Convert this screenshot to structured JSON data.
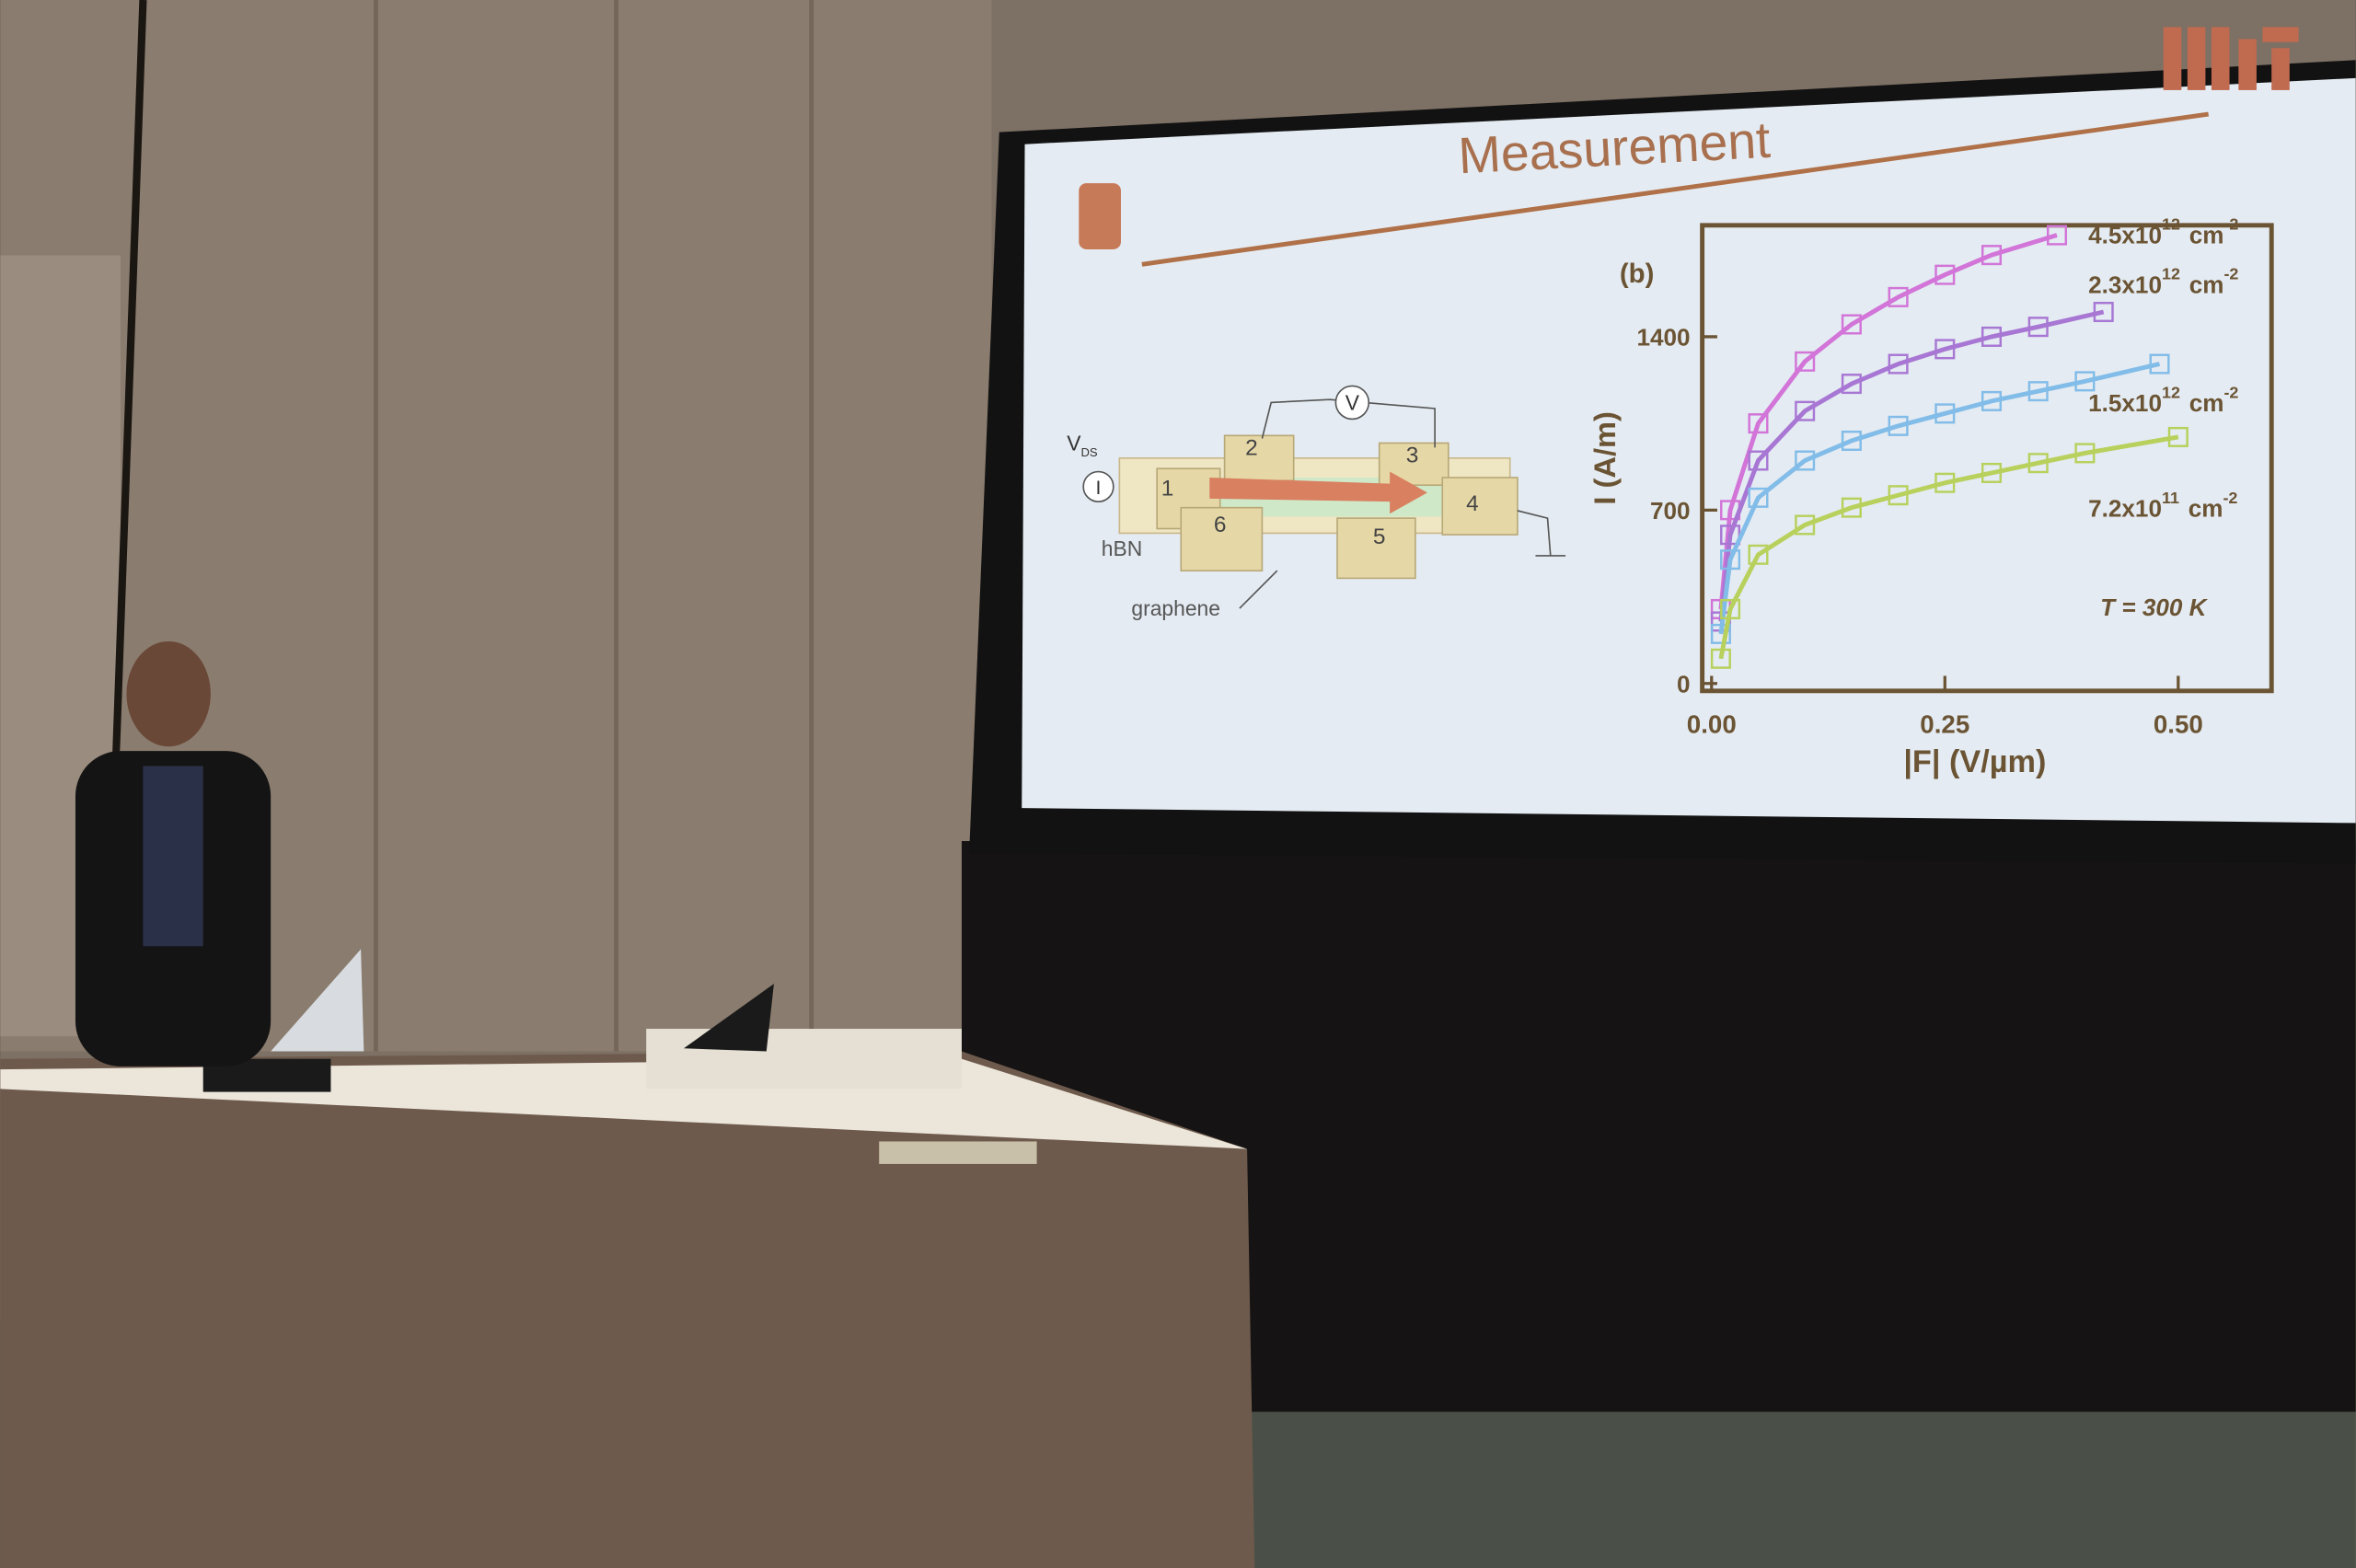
{
  "slide": {
    "title": "Measurement",
    "diagram": {
      "source_label": "V",
      "source_sub": "DS",
      "current": "I",
      "voltmeter": "V",
      "hbn": "hBN",
      "graphene": "graphene",
      "contacts": [
        "1",
        "2",
        "3",
        "4",
        "5",
        "6"
      ]
    }
  },
  "chart_data": {
    "type": "line",
    "panel_label": "(b)",
    "x_label": "|F| (V/µm)",
    "y_label": "I (A/m)",
    "annotation": "T = 300 K",
    "xlim": [
      -0.01,
      0.6
    ],
    "ylim": [
      -30,
      1850
    ],
    "xticks": [
      {
        "value": 0,
        "label": "0.00"
      },
      {
        "value": 0.25,
        "label": "0.25"
      },
      {
        "value": 0.5,
        "label": "0.50"
      }
    ],
    "yticks": [
      0,
      700,
      1400
    ],
    "series": [
      {
        "name": "4.5x10",
        "name_exp": "12",
        "unit": "cm",
        "unit_exp": "-2",
        "color": "#d274d8",
        "x": [
          0.01,
          0.02,
          0.05,
          0.1,
          0.15,
          0.2,
          0.25,
          0.3,
          0.37
        ],
        "values": [
          300,
          700,
          1050,
          1300,
          1450,
          1560,
          1650,
          1730,
          1810
        ]
      },
      {
        "name": "2.3x10",
        "name_exp": "12",
        "unit": "cm",
        "unit_exp": "-2",
        "color": "#a877d4",
        "x": [
          0.01,
          0.02,
          0.05,
          0.1,
          0.15,
          0.2,
          0.25,
          0.3,
          0.35,
          0.42
        ],
        "values": [
          250,
          600,
          900,
          1100,
          1210,
          1290,
          1350,
          1400,
          1440,
          1500
        ]
      },
      {
        "name": "1.5x10",
        "name_exp": "12",
        "unit": "cm",
        "unit_exp": "-2",
        "color": "#82bce8",
        "x": [
          0.01,
          0.02,
          0.05,
          0.1,
          0.15,
          0.2,
          0.25,
          0.3,
          0.35,
          0.4,
          0.48
        ],
        "values": [
          200,
          500,
          750,
          900,
          980,
          1040,
          1090,
          1140,
          1180,
          1220,
          1290
        ]
      },
      {
        "name": "7.2x10",
        "name_exp": "11",
        "unit": "cm",
        "unit_exp": "-2",
        "color": "#b8d05c",
        "x": [
          0.01,
          0.02,
          0.05,
          0.1,
          0.15,
          0.2,
          0.25,
          0.3,
          0.35,
          0.4,
          0.5
        ],
        "values": [
          100,
          300,
          520,
          640,
          710,
          760,
          810,
          850,
          890,
          930,
          995
        ]
      }
    ]
  }
}
